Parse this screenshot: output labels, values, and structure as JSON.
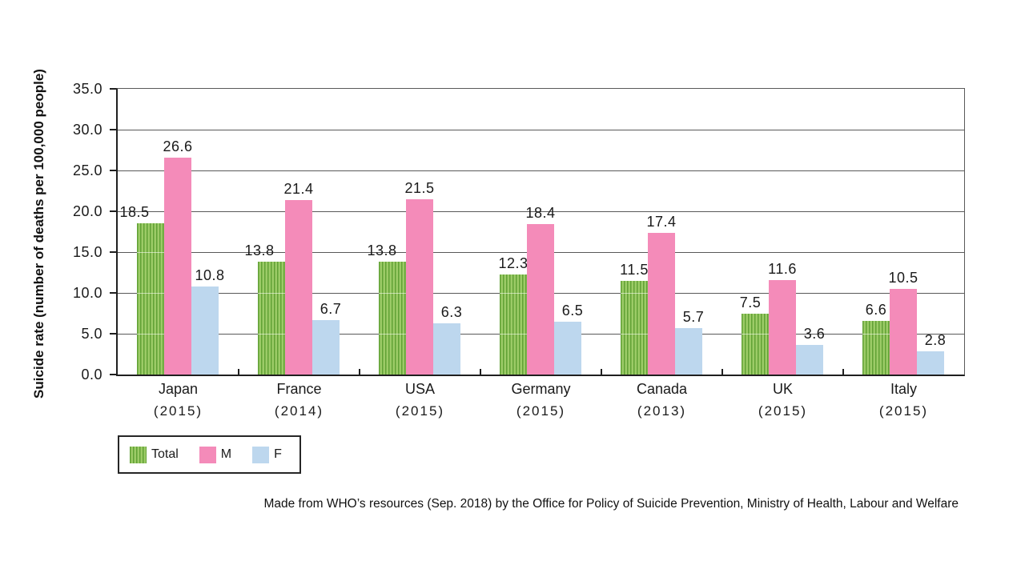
{
  "chart_data": {
    "type": "bar",
    "title": "",
    "ylabel": "Suicide rate (number of deaths per 100,000 people)",
    "xlabel": "",
    "ylim": [
      0,
      35
    ],
    "ytick_step": 5,
    "ytick_labels": [
      "35.0",
      "30.0",
      "25.0",
      "20.0",
      "15.0",
      "10.0",
      "5.0",
      "0.0"
    ],
    "grid": true,
    "legend_position": "bottom-left",
    "categories": [
      {
        "country": "Japan",
        "year": "(2015)"
      },
      {
        "country": "France",
        "year": "(2014)"
      },
      {
        "country": "USA",
        "year": "(2015)"
      },
      {
        "country": "Germany",
        "year": "(2015)"
      },
      {
        "country": "Canada",
        "year": "(2013)"
      },
      {
        "country": "UK",
        "year": "(2015)"
      },
      {
        "country": "Italy",
        "year": "(2015)"
      }
    ],
    "series": [
      {
        "name": "Total",
        "style": "hatched-vertical",
        "color": "#9CCB67",
        "stripe_color": "#61A135",
        "values": [
          18.5,
          13.8,
          13.8,
          12.3,
          11.5,
          7.5,
          6.6
        ]
      },
      {
        "name": "M",
        "style": "solid",
        "color": "#F48BB9",
        "values": [
          26.6,
          21.4,
          21.5,
          18.4,
          17.4,
          11.6,
          10.5
        ]
      },
      {
        "name": "F",
        "style": "solid",
        "color": "#BDD7EE",
        "values": [
          10.8,
          6.7,
          6.3,
          6.5,
          5.7,
          3.6,
          2.8
        ]
      }
    ],
    "value_label_dx": [
      [
        -20,
        -15,
        -13,
        0,
        0,
        -6,
        0
      ],
      [
        0,
        0,
        0,
        0,
        0,
        0,
        0
      ],
      [
        6,
        6,
        6,
        6,
        6,
        6,
        6
      ]
    ],
    "source_note": "Made from WHO’s resources (Sep. 2018) by the Office for Policy of Suicide Prevention, Ministry of Health, Labour and Welfare"
  },
  "colors": {
    "gridline": "#595959",
    "axis": "#1f1f1f",
    "text": "#1a1a1a"
  }
}
